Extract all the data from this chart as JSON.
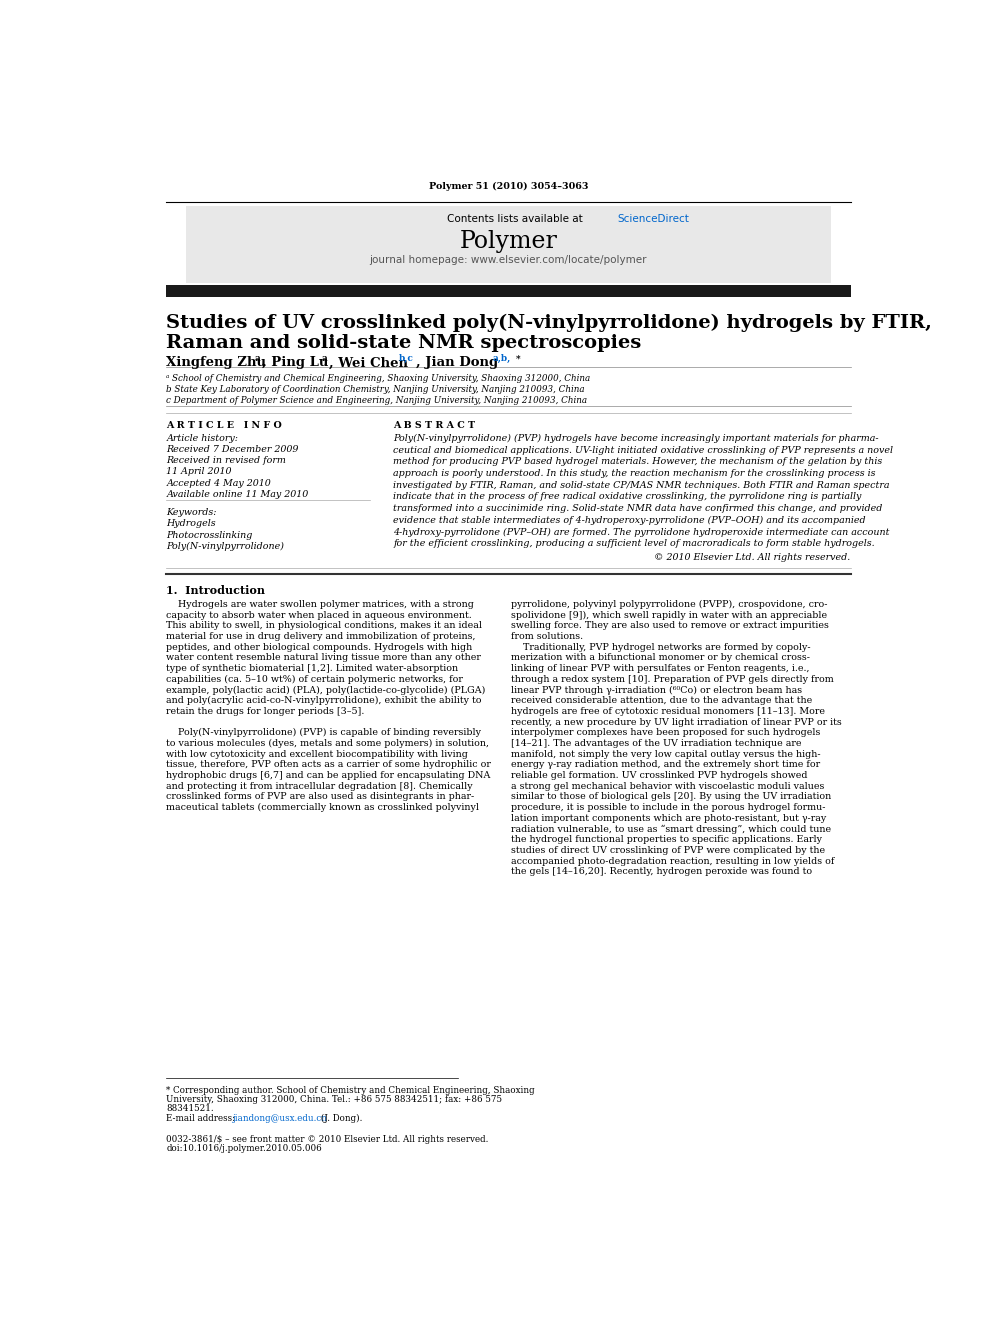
{
  "page_width": 9.92,
  "page_height": 13.23,
  "bg_color": "#ffffff",
  "journal_ref": "Polymer 51 (2010) 3054–3063",
  "header_bg": "#e8e8e8",
  "contents_line": "Contents lists available at ",
  "sciencedirect_text": "ScienceDirect",
  "sciencedirect_color": "#0066cc",
  "journal_name": "Polymer",
  "journal_url": "journal homepage: www.elsevier.com/locate/polymer",
  "header_bar_color": "#1a1a1a",
  "article_title_line1": "Studies of UV crosslinked poly(N-vinylpyrrolidone) hydrogels by FTIR,",
  "article_title_line2": "Raman and solid-state NMR spectroscopies",
  "affil_a": "ᵃ School of Chemistry and Chemical Engineering, Shaoxing University, Shaoxing 312000, China",
  "affil_b": "b State Key Laboratory of Coordination Chemistry, Nanjing University, Nanjing 210093, China",
  "affil_c": "c Department of Polymer Science and Engineering, Nanjing University, Nanjing 210093, China",
  "article_history_label": "Article history:",
  "received": "Received 7 December 2009",
  "received_revised": "Received in revised form",
  "april": "11 April 2010",
  "accepted": "Accepted 4 May 2010",
  "available": "Available online 11 May 2010",
  "keywords_label": "Keywords:",
  "keywords": [
    "Hydrogels",
    "Photocrosslinking",
    "Poly(N-vinylpyrrolidone)"
  ],
  "copyright": "© 2010 Elsevier Ltd. All rights reserved.",
  "section_intro": "1.  Introduction",
  "link_color": "#0066cc",
  "abstract_lines": [
    "Poly(N-vinylpyrrolidone) (PVP) hydrogels have become increasingly important materials for pharma-",
    "ceutical and biomedical applications. UV-light initiated oxidative crosslinking of PVP represents a novel",
    "method for producing PVP based hydrogel materials. However, the mechanism of the gelation by this",
    "approach is poorly understood. In this study, the reaction mechanism for the crosslinking process is",
    "investigated by FTIR, Raman, and solid-state CP/MAS NMR techniques. Both FTIR and Raman spectra",
    "indicate that in the process of free radical oxidative crosslinking, the pyrrolidone ring is partially",
    "transformed into a succinimide ring. Solid-state NMR data have confirmed this change, and provided",
    "evidence that stable intermediates of 4-hydroperoxy-pyrrolidone (PVP–OOH) and its accompanied",
    "4-hydroxy-pyrrolidone (PVP–OH) are formed. The pyrrolidone hydroperoxide intermediate can account",
    "for the efficient crosslinking, producing a sufficient level of macroradicals to form stable hydrogels."
  ],
  "body_left_lines": [
    "    Hydrogels are water swollen polymer matrices, with a strong",
    "capacity to absorb water when placed in aqueous environment.",
    "This ability to swell, in physiological conditions, makes it an ideal",
    "material for use in drug delivery and immobilization of proteins,",
    "peptides, and other biological compounds. Hydrogels with high",
    "water content resemble natural living tissue more than any other",
    "type of synthetic biomaterial [1,2]. Limited water-absorption",
    "capabilities (ca. 5–10 wt%) of certain polymeric networks, for",
    "example, poly(lactic acid) (PLA), poly(lactide-co-glycolide) (PLGA)",
    "and poly(acrylic acid-co-N-vinylpyrrolidone), exhibit the ability to",
    "retain the drugs for longer periods [3–5].",
    "",
    "    Poly(N-vinylpyrrolidone) (PVP) is capable of binding reversibly",
    "to various molecules (dyes, metals and some polymers) in solution,",
    "with low cytotoxicity and excellent biocompatibility with living",
    "tissue, therefore, PVP often acts as a carrier of some hydrophilic or",
    "hydrophobic drugs [6,7] and can be applied for encapsulating DNA",
    "and protecting it from intracellular degradation [8]. Chemically",
    "crosslinked forms of PVP are also used as disintegrants in phar-",
    "maceutical tablets (commercially known as crosslinked polyvinyl"
  ],
  "body_right_lines": [
    "pyrrolidone, polyvinyl polypyrrolidone (PVPP), crospovidone, cro-",
    "spolividone [9]), which swell rapidly in water with an appreciable",
    "swelling force. They are also used to remove or extract impurities",
    "from solutions.",
    "    Traditionally, PVP hydrogel networks are formed by copoly-",
    "merization with a bifunctional monomer or by chemical cross-",
    "linking of linear PVP with persulfates or Fenton reagents, i.e.,",
    "through a redox system [10]. Preparation of PVP gels directly from",
    "linear PVP through γ-irradiation (⁶⁰Co) or electron beam has",
    "received considerable attention, due to the advantage that the",
    "hydrogels are free of cytotoxic residual monomers [11–13]. More",
    "recently, a new procedure by UV light irradiation of linear PVP or its",
    "interpolymer complexes have been proposed for such hydrogels",
    "[14–21]. The advantages of the UV irradiation technique are",
    "manifold, not simply the very low capital outlay versus the high-",
    "energy γ-ray radiation method, and the extremely short time for",
    "reliable gel formation. UV crosslinked PVP hydrogels showed",
    "a strong gel mechanical behavior with viscoelastic moduli values",
    "similar to those of biological gels [20]. By using the UV irradiation",
    "procedure, it is possible to include in the porous hydrogel formu-",
    "lation important components which are photo-resistant, but γ-ray",
    "radiation vulnerable, to use as “smart dressing”, which could tune",
    "the hydrogel functional properties to specific applications. Early",
    "studies of direct UV crosslinking of PVP were complicated by the",
    "accompanied photo-degradation reaction, resulting in low yields of",
    "the gels [14–16,20]. Recently, hydrogen peroxide was found to"
  ],
  "footer_line1": "* Corresponding author. School of Chemistry and Chemical Engineering, Shaoxing",
  "footer_line2": "University, Shaoxing 312000, China. Tel.: +86 575 88342511; fax: +86 575",
  "footer_line3": "88341521.",
  "footer_email_pre": "E-mail address: ",
  "footer_email_link": "jiandong@usx.edu.cn",
  "footer_email_post": " (J. Dong).",
  "footer_bottom1": "0032-3861/$ – see front matter © 2010 Elsevier Ltd. All rights reserved.",
  "footer_bottom2": "doi:10.1016/j.polymer.2010.05.006"
}
